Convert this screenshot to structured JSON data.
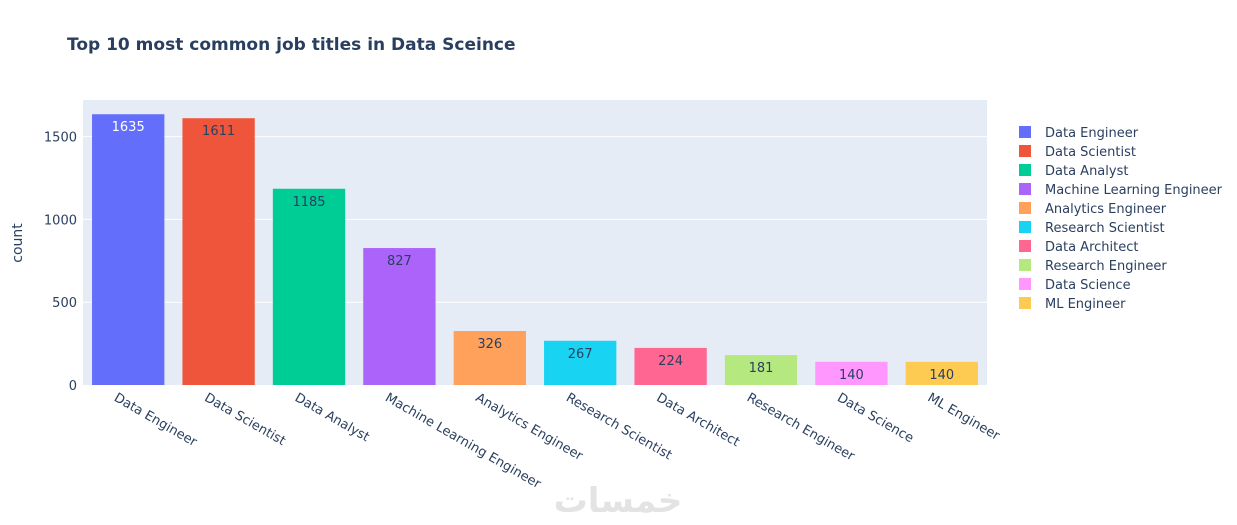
{
  "chart_data": {
    "type": "bar",
    "title": "Top 10 most common job titles in Data Sceince",
    "xlabel": "",
    "ylabel": "count",
    "ylim": [
      0,
      1721
    ],
    "yticks": [
      0,
      500,
      1000,
      1500
    ],
    "categories": [
      "Data Engineer",
      "Data Scientist",
      "Data Analyst",
      "Machine Learning Engineer",
      "Analytics Engineer",
      "Research Scientist",
      "Data Architect",
      "Research Engineer",
      "Data Science",
      "ML Engineer"
    ],
    "values": [
      1635,
      1611,
      1185,
      827,
      326,
      267,
      224,
      181,
      140,
      140
    ],
    "colors": [
      "#636efa",
      "#ef553b",
      "#00cc96",
      "#ab63fa",
      "#ffa15a",
      "#19d3f3",
      "#ff6692",
      "#b6e880",
      "#ff97ff",
      "#fecb52"
    ],
    "label_colors": [
      "#ffffff",
      "#2a3f5f",
      "#2a3f5f",
      "#2a3f5f",
      "#2a3f5f",
      "#2a3f5f",
      "#2a3f5f",
      "#2a3f5f",
      "#2a3f5f",
      "#2a3f5f"
    ],
    "legend": {
      "position": "right",
      "entries": [
        "Data Engineer",
        "Data Scientist",
        "Data Analyst",
        "Machine Learning Engineer",
        "Analytics Engineer",
        "Research Scientist",
        "Data Architect",
        "Research Engineer",
        "Data Science",
        "ML Engineer"
      ]
    },
    "grid": true,
    "plot_bgcolor": "#e5ecf6"
  },
  "watermark": {
    "text": "خمسات"
  }
}
